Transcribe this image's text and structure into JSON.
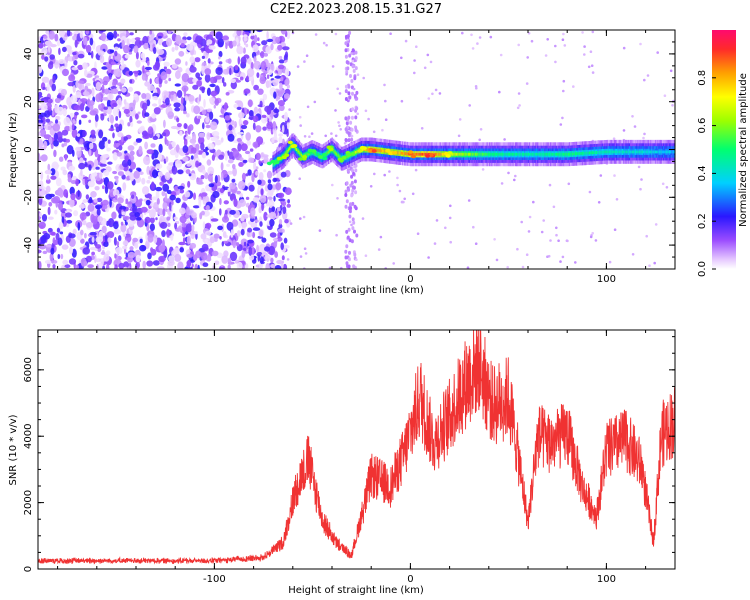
{
  "title": "C2E2.2023.208.15.31.G27",
  "colors": {
    "snr_line": "#f03232",
    "axis": "#000000"
  },
  "chart_data": [
    {
      "type": "heatmap",
      "name": "spectrogram",
      "xlabel": "Height of straight line (km)",
      "ylabel": "Frequency (Hz)",
      "xlim": [
        -190,
        135
      ],
      "ylim": [
        -50,
        50
      ],
      "x_ticks": [
        {
          "value": -100,
          "label": "-100"
        },
        {
          "value": 0,
          "label": "0"
        },
        {
          "value": 100,
          "label": "100"
        }
      ],
      "y_ticks": [
        {
          "value": -40,
          "label": "-40"
        },
        {
          "value": -20,
          "label": "-20"
        },
        {
          "value": 0,
          "label": "0"
        },
        {
          "value": 20,
          "label": "20"
        },
        {
          "value": 40,
          "label": "40"
        }
      ],
      "colorbar": {
        "label": "Normalized spectral amplitude",
        "range": [
          0,
          1
        ],
        "ticks": [
          {
            "value": 0.0,
            "label": "0.0"
          },
          {
            "value": 0.2,
            "label": "0.2"
          },
          {
            "value": 0.4,
            "label": "0.4"
          },
          {
            "value": 0.6,
            "label": "0.6"
          },
          {
            "value": 0.8,
            "label": "0.8"
          }
        ],
        "colormap": "rainbow"
      },
      "signal_trace": [
        {
          "x": -70,
          "y": -6,
          "amp": 0.55
        },
        {
          "x": -65,
          "y": -3,
          "amp": 0.6
        },
        {
          "x": -60,
          "y": 2,
          "amp": 0.65
        },
        {
          "x": -55,
          "y": -3,
          "amp": 0.6
        },
        {
          "x": -50,
          "y": -1,
          "amp": 0.55
        },
        {
          "x": -45,
          "y": -3,
          "amp": 0.5
        },
        {
          "x": -40,
          "y": 0,
          "amp": 0.6
        },
        {
          "x": -35,
          "y": -4,
          "amp": 0.55
        },
        {
          "x": -30,
          "y": -2,
          "amp": 0.6
        },
        {
          "x": -25,
          "y": 0,
          "amp": 0.7
        },
        {
          "x": -20,
          "y": 0,
          "amp": 0.85
        },
        {
          "x": -10,
          "y": -1,
          "amp": 0.75
        },
        {
          "x": 0,
          "y": -2,
          "amp": 0.85
        },
        {
          "x": 10,
          "y": -2,
          "amp": 0.9
        },
        {
          "x": 20,
          "y": -2,
          "amp": 0.7
        },
        {
          "x": 40,
          "y": -2,
          "amp": 0.5
        },
        {
          "x": 60,
          "y": -2,
          "amp": 0.45
        },
        {
          "x": 80,
          "y": -2,
          "amp": 0.5
        },
        {
          "x": 100,
          "y": -1,
          "amp": 0.45
        },
        {
          "x": 120,
          "y": -1,
          "amp": 0.4
        },
        {
          "x": 135,
          "y": -1,
          "amp": 0.35
        }
      ],
      "noise_region": {
        "x_start": -190,
        "x_end": -68
      },
      "faint_stripe": {
        "x": -30,
        "width": 6
      }
    },
    {
      "type": "line",
      "name": "snr",
      "xlabel": "Height of straight line (km)",
      "ylabel": "SNR (10 * v/v)",
      "xlim": [
        -190,
        135
      ],
      "ylim": [
        0,
        7200
      ],
      "x_ticks": [
        {
          "value": -100,
          "label": "-100"
        },
        {
          "value": 0,
          "label": "0"
        },
        {
          "value": 100,
          "label": "100"
        }
      ],
      "y_ticks": [
        {
          "value": 0,
          "label": "0"
        },
        {
          "value": 2000,
          "label": "2000"
        },
        {
          "value": 4000,
          "label": "4000"
        },
        {
          "value": 6000,
          "label": "6000"
        }
      ],
      "envelope": [
        {
          "x": -190,
          "y": 250
        },
        {
          "x": -150,
          "y": 250
        },
        {
          "x": -100,
          "y": 250
        },
        {
          "x": -75,
          "y": 350
        },
        {
          "x": -65,
          "y": 800
        },
        {
          "x": -58,
          "y": 2500
        },
        {
          "x": -52,
          "y": 3300
        },
        {
          "x": -45,
          "y": 1500
        },
        {
          "x": -38,
          "y": 800
        },
        {
          "x": -30,
          "y": 400
        },
        {
          "x": -20,
          "y": 2800
        },
        {
          "x": -10,
          "y": 2500
        },
        {
          "x": -3,
          "y": 3500
        },
        {
          "x": 5,
          "y": 5200
        },
        {
          "x": 12,
          "y": 3800
        },
        {
          "x": 20,
          "y": 4600
        },
        {
          "x": 28,
          "y": 5600
        },
        {
          "x": 35,
          "y": 6200
        },
        {
          "x": 42,
          "y": 4900
        },
        {
          "x": 50,
          "y": 5200
        },
        {
          "x": 55,
          "y": 3400
        },
        {
          "x": 60,
          "y": 1400
        },
        {
          "x": 65,
          "y": 4000
        },
        {
          "x": 72,
          "y": 3800
        },
        {
          "x": 80,
          "y": 4100
        },
        {
          "x": 88,
          "y": 2400
        },
        {
          "x": 95,
          "y": 1600
        },
        {
          "x": 100,
          "y": 3600
        },
        {
          "x": 110,
          "y": 3900
        },
        {
          "x": 118,
          "y": 3100
        },
        {
          "x": 124,
          "y": 800
        },
        {
          "x": 128,
          "y": 4000
        },
        {
          "x": 135,
          "y": 4500
        }
      ],
      "noise_amplitude": 0.25
    }
  ]
}
